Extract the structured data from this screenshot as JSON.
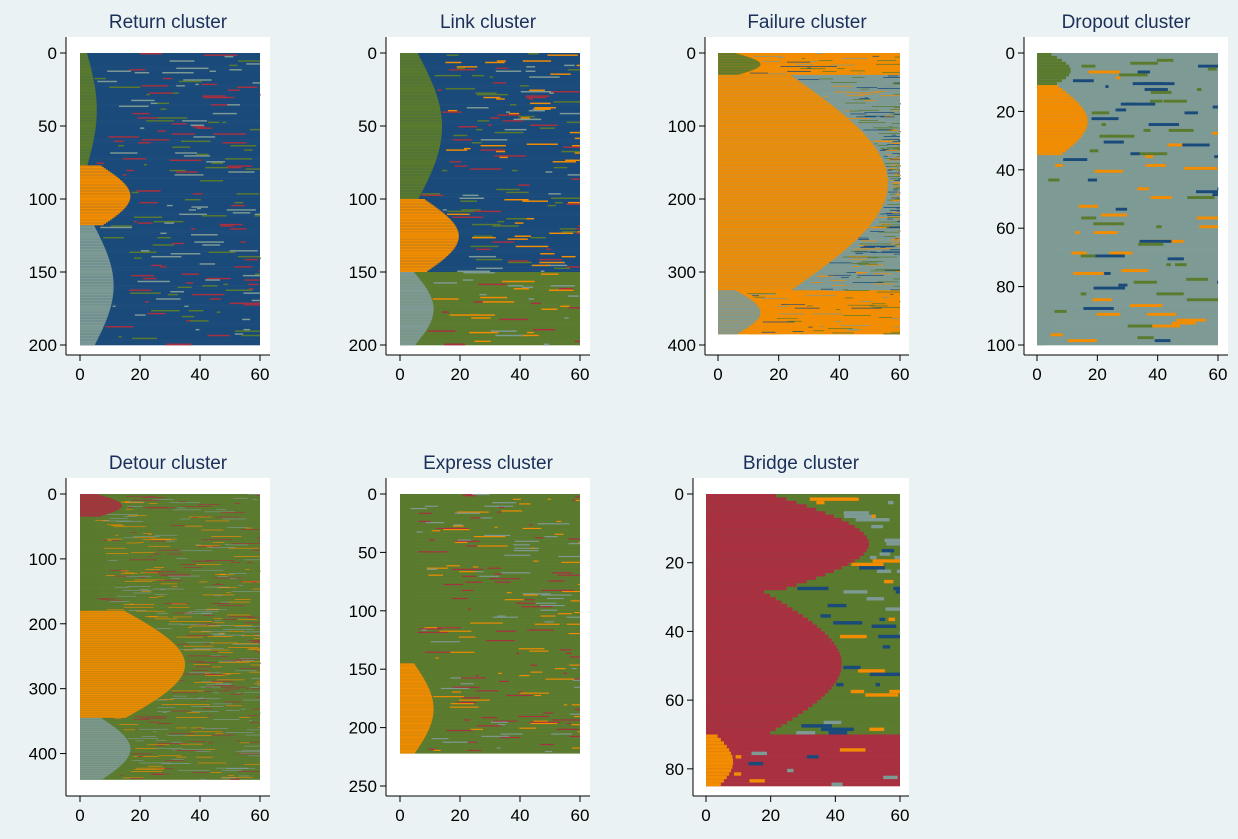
{
  "colors": {
    "background": "#eaf2f3",
    "navy": "#1a4a7a",
    "green": "#5a7a2e",
    "orange": "#f28c00",
    "gray": "#7e9a94",
    "red": "#a83040"
  },
  "chart_data": [
    {
      "type": "heatmap",
      "title": "Return cluster",
      "xlim": [
        0,
        60
      ],
      "ylim": [
        0,
        200
      ],
      "rows": 200,
      "xticks": [
        "0",
        "20",
        "40",
        "60"
      ],
      "yticks": [
        "0",
        "50",
        "100",
        "150",
        "200"
      ],
      "ytick_values": [
        0,
        50,
        100,
        150,
        200
      ],
      "dominant": "navy",
      "bands": [
        {
          "from": 0,
          "to": 77,
          "color": "navy",
          "lead": "green",
          "lead_len": 4
        },
        {
          "from": 77,
          "to": 118,
          "color": "navy",
          "lead": "orange",
          "lead_len": 12
        },
        {
          "from": 118,
          "to": 200,
          "color": "navy",
          "lead": "gray",
          "lead_len": 8
        }
      ],
      "mix": [
        "green",
        "gray",
        "red"
      ]
    },
    {
      "type": "heatmap",
      "title": "Link cluster",
      "xlim": [
        0,
        60
      ],
      "ylim": [
        0,
        200
      ],
      "rows": 200,
      "xticks": [
        "0",
        "20",
        "40",
        "60"
      ],
      "yticks": [
        "0",
        "50",
        "100",
        "150",
        "200"
      ],
      "ytick_values": [
        0,
        50,
        100,
        150,
        200
      ],
      "dominant": "navy",
      "bands": [
        {
          "from": 0,
          "to": 100,
          "color": "navy",
          "lead": "green",
          "lead_len": 10
        },
        {
          "from": 100,
          "to": 150,
          "color": "navy",
          "lead": "orange",
          "lead_len": 14
        },
        {
          "from": 150,
          "to": 200,
          "color": "green",
          "lead": "gray",
          "lead_len": 8
        }
      ],
      "mix": [
        "green",
        "orange",
        "gray",
        "red"
      ]
    },
    {
      "type": "heatmap",
      "title": "Failure cluster",
      "xlim": [
        0,
        60
      ],
      "ylim": [
        0,
        400
      ],
      "rows": 385,
      "xticks": [
        "0",
        "20",
        "40",
        "60"
      ],
      "yticks": [
        "0",
        "100",
        "200",
        "300",
        "400"
      ],
      "ytick_values": [
        0,
        100,
        200,
        300,
        400
      ],
      "dominant": "orange",
      "bands": [
        {
          "from": 0,
          "to": 30,
          "color": "orange",
          "lead": "green",
          "lead_len": 10
        },
        {
          "from": 30,
          "to": 325,
          "color": "gray",
          "lead": "orange",
          "lead_len": 40
        },
        {
          "from": 325,
          "to": 385,
          "color": "orange",
          "lead": "gray",
          "lead_len": 10
        }
      ],
      "mix": [
        "green",
        "gray",
        "navy",
        "orange"
      ]
    },
    {
      "type": "heatmap",
      "title": "Dropout cluster",
      "xlim": [
        0,
        60
      ],
      "ylim": [
        0,
        100
      ],
      "rows": 100,
      "xticks": [
        "0",
        "20",
        "40",
        "60"
      ],
      "yticks": [
        "0",
        "20",
        "40",
        "60",
        "80",
        "100"
      ],
      "ytick_values": [
        0,
        20,
        40,
        60,
        80,
        100
      ],
      "dominant": "gray",
      "bands": [
        {
          "from": 0,
          "to": 11,
          "color": "gray",
          "lead": "green",
          "lead_len": 8
        },
        {
          "from": 11,
          "to": 35,
          "color": "gray",
          "lead": "orange",
          "lead_len": 12
        },
        {
          "from": 35,
          "to": 100,
          "color": "gray",
          "lead": "gray",
          "lead_len": 4
        }
      ],
      "mix": [
        "green",
        "orange",
        "navy"
      ]
    },
    {
      "type": "heatmap",
      "title": "Detour cluster",
      "xlim": [
        0,
        60
      ],
      "ylim": [
        0,
        450
      ],
      "rows": 440,
      "xticks": [
        "0",
        "20",
        "40",
        "60"
      ],
      "yticks": [
        "0",
        "100",
        "200",
        "300",
        "400"
      ],
      "ytick_values": [
        0,
        100,
        200,
        300,
        400
      ],
      "dominant": "green",
      "bands": [
        {
          "from": 0,
          "to": 35,
          "color": "green",
          "lead": "red",
          "lead_len": 10
        },
        {
          "from": 35,
          "to": 180,
          "color": "green",
          "lead": "green",
          "lead_len": 6
        },
        {
          "from": 180,
          "to": 345,
          "color": "green",
          "lead": "orange",
          "lead_len": 25
        },
        {
          "from": 345,
          "to": 440,
          "color": "green",
          "lead": "gray",
          "lead_len": 12
        }
      ],
      "mix": [
        "orange",
        "gray",
        "red"
      ]
    },
    {
      "type": "heatmap",
      "title": "Express cluster",
      "xlim": [
        0,
        60
      ],
      "ylim": [
        0,
        250
      ],
      "rows": 222,
      "xticks": [
        "0",
        "20",
        "40",
        "60"
      ],
      "yticks": [
        "0",
        "50",
        "100",
        "150",
        "200",
        "250"
      ],
      "ytick_values": [
        0,
        50,
        100,
        150,
        200,
        250
      ],
      "dominant": "green",
      "bands": [
        {
          "from": 0,
          "to": 145,
          "color": "green",
          "lead": "green",
          "lead_len": 4
        },
        {
          "from": 145,
          "to": 222,
          "color": "green",
          "lead": "orange",
          "lead_len": 8
        }
      ],
      "mix": [
        "orange",
        "gray",
        "red"
      ]
    },
    {
      "type": "heatmap",
      "title": "Bridge cluster",
      "xlim": [
        0,
        60
      ],
      "ylim": [
        0,
        85
      ],
      "rows": 85,
      "xticks": [
        "0",
        "20",
        "40",
        "60"
      ],
      "yticks": [
        "0",
        "20",
        "40",
        "60",
        "80"
      ],
      "ytick_values": [
        0,
        20,
        40,
        60,
        80
      ],
      "dominant": "red",
      "bands": [
        {
          "from": 0,
          "to": 28,
          "color": "green",
          "lead": "red",
          "lead_len": 36
        },
        {
          "from": 28,
          "to": 70,
          "color": "green",
          "lead": "red",
          "lead_len": 30
        },
        {
          "from": 70,
          "to": 85,
          "color": "red",
          "lead": "orange",
          "lead_len": 6
        }
      ],
      "mix": [
        "orange",
        "gray",
        "navy",
        "green"
      ]
    }
  ]
}
